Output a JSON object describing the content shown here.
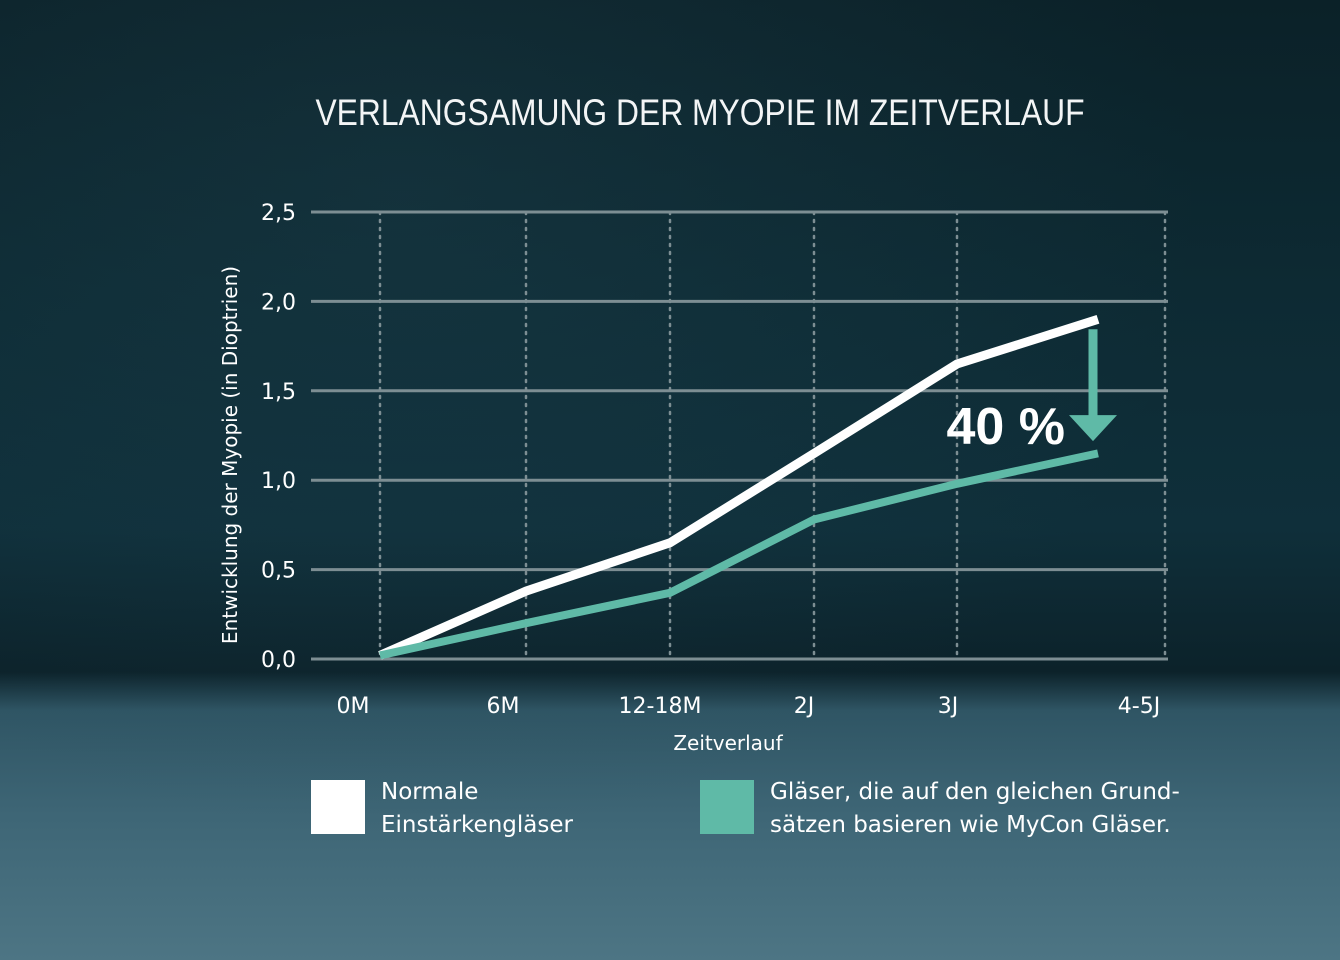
{
  "chart_data": {
    "type": "line",
    "title": "VERLANGSAMUNG DER MYOPIE IM ZEITVERLAUF",
    "xlabel": "Zeitverlauf",
    "ylabel": "Entwicklung der Myopie (in Dioptrien)",
    "categories": [
      "0M",
      "6M",
      "12-18M",
      "2J",
      "3J",
      "4-5J"
    ],
    "yticks": [
      "0,0",
      "0,5",
      "1,0",
      "1,5",
      "2,0",
      "2,5"
    ],
    "ylim": [
      0,
      2.5
    ],
    "grid": true,
    "legend_position": "bottom",
    "series": [
      {
        "name": "Normale Einstärkengläser",
        "legend_lines": [
          "Normale",
          "Einstärkengläser"
        ],
        "color": "#ffffff",
        "x": [
          "0M",
          "6M",
          "12-18M",
          "2J",
          "3J",
          "4-5J"
        ],
        "values": [
          0.02,
          0.38,
          0.65,
          1.15,
          1.65,
          1.9
        ]
      },
      {
        "name": "Gläser, die auf den gleichen Grundsätzen basieren wie MyCon Gläser.",
        "legend_lines": [
          "Gläser, die auf den gleichen Grund-",
          "sätzen basieren wie MyCon Gläser."
        ],
        "color": "#5fbaa7",
        "x": [
          "0M",
          "6M",
          "12-18M",
          "2J",
          "3J",
          "4-5J"
        ],
        "values": [
          0.02,
          0.2,
          0.37,
          0.78,
          0.98,
          1.15
        ]
      }
    ],
    "annotation": {
      "text": "40 %",
      "color": "#5fbaa7",
      "at": "4-5J"
    }
  }
}
